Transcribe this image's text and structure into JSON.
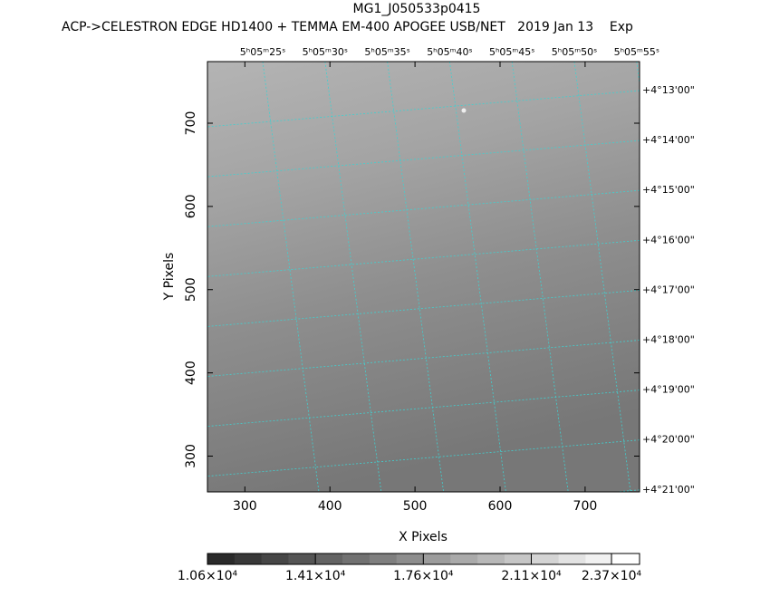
{
  "chart_data": {
    "type": "image",
    "title": "MG1_J050533p0415",
    "subtitle": "ACP->CELESTRON EDGE HD1400 + TEMMA EM-400 APOGEE USB/NET   2019 Jan 13    Exp",
    "xlabel": "X Pixels",
    "ylabel": "Y Pixels",
    "xlim": [
      256,
      764
    ],
    "ylim": [
      257,
      774
    ],
    "xticks": [
      300,
      400,
      500,
      600,
      700
    ],
    "yticks": [
      300,
      400,
      500,
      600,
      700
    ],
    "ra_labels": [
      "5ʰ05ᵐ25ˢ",
      "5ʰ05ᵐ30ˢ",
      "5ʰ05ᵐ35ˢ",
      "5ʰ05ᵐ40ˢ",
      "5ʰ05ᵐ45ˢ",
      "5ʰ05ᵐ50ˢ",
      "5ʰ05ᵐ55ˢ"
    ],
    "dec_labels": [
      "+4°13'00\"",
      "+4°14'00\"",
      "+4°15'00\"",
      "+4°16'00\"",
      "+4°17'00\"",
      "+4°18'00\"",
      "+4°19'00\"",
      "+4°20'00\"",
      "+4°21'00\""
    ],
    "grid_color": "#40d0d0",
    "colorbar_lim": [
      10600,
      24610
    ],
    "colorbar_ticks": [
      {
        "value": 10600,
        "label": "1.06×10⁴"
      },
      {
        "value": 14100,
        "label": "1.41×10⁴"
      },
      {
        "value": 17600,
        "label": "1.76×10⁴"
      },
      {
        "value": 21100,
        "label": "2.11×10⁴"
      },
      {
        "value": 23700,
        "label": "2.37×10⁴"
      }
    ]
  }
}
